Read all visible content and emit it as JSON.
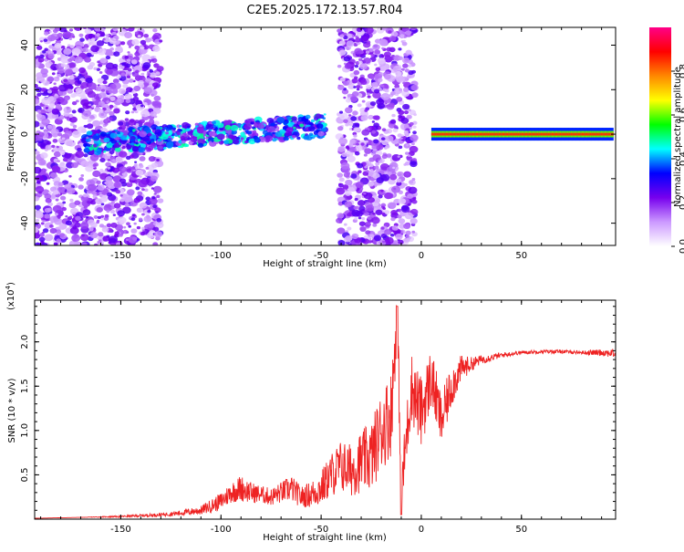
{
  "figure": {
    "title": "C2E5.2025.172.13.57.R04"
  },
  "chart_data": [
    {
      "type": "heatmap",
      "xlabel": "Height of straight line (km)",
      "ylabel": "Frequency (Hz)",
      "xlim": [
        -193,
        97
      ],
      "ylim": [
        -50,
        48
      ],
      "xticks": [
        -150,
        -100,
        -50,
        0,
        50
      ],
      "yticks": [
        -40,
        -20,
        0,
        20,
        40
      ],
      "colorbar": {
        "label": "Normalized spectral amplitude",
        "range": [
          0,
          1
        ],
        "ticks": [
          0.0,
          0.2,
          0.4,
          0.6,
          0.8
        ],
        "tick_labels": [
          "0.0",
          "0.2",
          "0.4",
          "0.6",
          "0.8"
        ],
        "colors": [
          "#ffffff",
          "#cc99ff",
          "#7700ee",
          "#0000ff",
          "#00ffff",
          "#00ff00",
          "#ffff00",
          "#ff8800",
          "#ff0000",
          "#ff0088"
        ]
      },
      "features": {
        "noise_regions_km": [
          [
            -193,
            -130
          ],
          [
            -41,
            -3
          ]
        ],
        "signal_band": {
          "x_start": -168,
          "x_end": -48,
          "freq_center_start": -4,
          "freq_center_end": 4,
          "freq_halfwidth": 5
        },
        "stable_tone": {
          "x_start": 5,
          "x_end": 95,
          "freq": 0,
          "amplitude": 0.85
        }
      }
    },
    {
      "type": "line",
      "xlabel": "Height of straight line (km)",
      "ylabel": "SNR (10 * v/v)",
      "y_multiplier": "(x10",
      "y_multiplier_exp": "4",
      "y_multiplier_close": ")",
      "xlim": [
        -193,
        97
      ],
      "ylim": [
        0,
        2.47
      ],
      "xticks": [
        -150,
        -100,
        -50,
        0,
        50
      ],
      "yticks": [
        0.5,
        1.0,
        1.5,
        2.0
      ],
      "ytick_labels": [
        "0.5",
        "1.0",
        "1.5",
        "2.0"
      ],
      "series": [
        {
          "color": "#ee2222",
          "x": [
            -193,
            -170,
            -150,
            -130,
            -120,
            -110,
            -100,
            -95,
            -90,
            -85,
            -80,
            -75,
            -70,
            -65,
            -60,
            -55,
            -50,
            -45,
            -40,
            -35,
            -30,
            -25,
            -20,
            -15,
            -12,
            -10,
            -5,
            0,
            5,
            10,
            15,
            20,
            25,
            30,
            40,
            50,
            60,
            70,
            80,
            90,
            97
          ],
          "y": [
            0.01,
            0.02,
            0.03,
            0.05,
            0.07,
            0.1,
            0.2,
            0.3,
            0.35,
            0.3,
            0.28,
            0.25,
            0.3,
            0.35,
            0.25,
            0.28,
            0.35,
            0.5,
            0.6,
            0.55,
            0.65,
            0.7,
            1.0,
            1.2,
            2.4,
            0.3,
            1.5,
            1.2,
            1.6,
            1.1,
            1.5,
            1.7,
            1.75,
            1.8,
            1.85,
            1.88,
            1.89,
            1.89,
            1.88,
            1.88,
            1.87
          ],
          "noise_envelope": [
            0,
            0,
            0.01,
            0.02,
            0.03,
            0.05,
            0.1,
            0.12,
            0.15,
            0.12,
            0.1,
            0.1,
            0.12,
            0.15,
            0.12,
            0.15,
            0.2,
            0.25,
            0.3,
            0.3,
            0.35,
            0.4,
            0.45,
            0.5,
            0.3,
            0.3,
            0.4,
            0.4,
            0.35,
            0.3,
            0.25,
            0.15,
            0.08,
            0.05,
            0.03,
            0.02,
            0.02,
            0.02,
            0.02,
            0.04,
            0.05
          ]
        }
      ]
    }
  ]
}
